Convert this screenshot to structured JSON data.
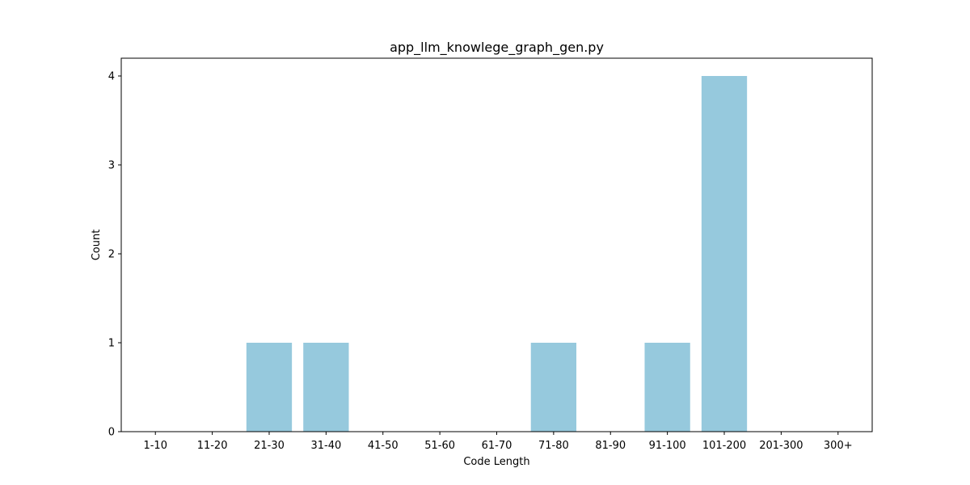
{
  "chart_data": {
    "type": "bar",
    "title": "app_llm_knowlege_graph_gen.py",
    "xlabel": "Code Length",
    "ylabel": "Count",
    "categories": [
      "1-10",
      "11-20",
      "21-30",
      "31-40",
      "41-50",
      "51-60",
      "61-70",
      "71-80",
      "81-90",
      "91-100",
      "101-200",
      "201-300",
      "300+"
    ],
    "values": [
      0,
      0,
      1,
      1,
      0,
      0,
      0,
      1,
      0,
      1,
      4,
      0,
      0
    ],
    "yticks": [
      0,
      1,
      2,
      3,
      4
    ],
    "ylim": [
      0,
      4.2
    ],
    "grid": false,
    "bar_color": "#96c9dd"
  }
}
